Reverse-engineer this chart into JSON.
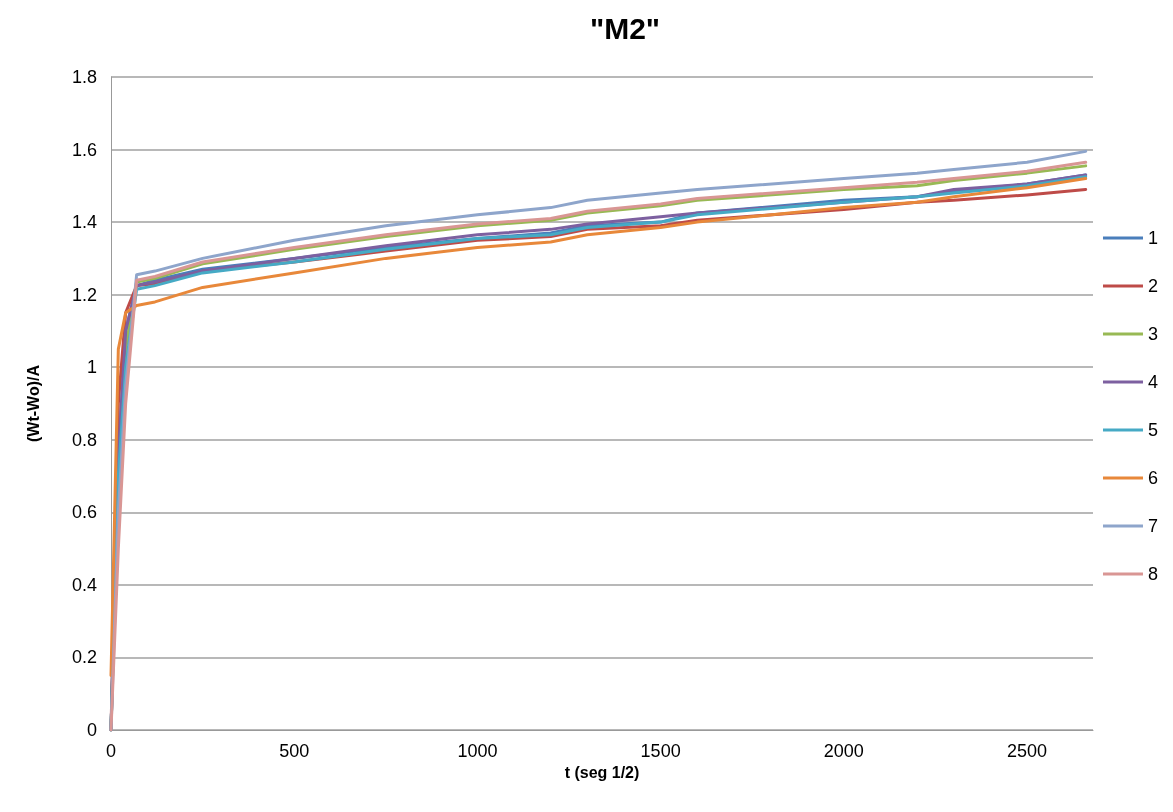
{
  "chart_data": {
    "type": "line",
    "title": "\"M2\"",
    "xlabel": "t (seg 1/2)",
    "ylabel": "(Wt-Wo)/A",
    "x": [
      0,
      20,
      40,
      70,
      120,
      250,
      500,
      750,
      1000,
      1200,
      1300,
      1500,
      1600,
      2000,
      2200,
      2300,
      2500,
      2660
    ],
    "series": [
      {
        "name": "1",
        "color": "#4a7ebb",
        "values": [
          0,
          0.75,
          1.1,
          1.225,
          1.24,
          1.27,
          1.3,
          1.33,
          1.355,
          1.37,
          1.39,
          1.4,
          1.425,
          1.46,
          1.47,
          1.485,
          1.505,
          1.53
        ]
      },
      {
        "name": "2",
        "color": "#be4b48",
        "values": [
          0,
          0.9,
          1.15,
          1.225,
          1.23,
          1.265,
          1.29,
          1.32,
          1.35,
          1.36,
          1.38,
          1.39,
          1.405,
          1.435,
          1.455,
          1.46,
          1.475,
          1.49
        ]
      },
      {
        "name": "3",
        "color": "#98b954",
        "values": [
          0,
          0.7,
          1.05,
          1.235,
          1.245,
          1.285,
          1.325,
          1.36,
          1.39,
          1.405,
          1.425,
          1.445,
          1.46,
          1.49,
          1.5,
          1.515,
          1.535,
          1.555
        ]
      },
      {
        "name": "4",
        "color": "#7d60a0",
        "values": [
          0,
          0.75,
          1.1,
          1.225,
          1.235,
          1.265,
          1.3,
          1.335,
          1.365,
          1.38,
          1.395,
          1.415,
          1.425,
          1.455,
          1.47,
          1.49,
          1.505,
          1.53
        ]
      },
      {
        "name": "5",
        "color": "#46aac5",
        "values": [
          0,
          0.7,
          1.0,
          1.215,
          1.225,
          1.26,
          1.29,
          1.325,
          1.355,
          1.365,
          1.385,
          1.4,
          1.42,
          1.455,
          1.47,
          1.48,
          1.5,
          1.525
        ]
      },
      {
        "name": "6",
        "color": "#e8883a",
        "values": [
          0.15,
          1.05,
          1.15,
          1.17,
          1.18,
          1.22,
          1.26,
          1.3,
          1.33,
          1.345,
          1.365,
          1.385,
          1.4,
          1.44,
          1.455,
          1.47,
          1.495,
          1.52
        ]
      },
      {
        "name": "7",
        "color": "#8ea5cb",
        "values": [
          0,
          0.6,
          0.95,
          1.255,
          1.265,
          1.3,
          1.35,
          1.39,
          1.42,
          1.44,
          1.46,
          1.48,
          1.49,
          1.52,
          1.535,
          1.545,
          1.565,
          1.595
        ]
      },
      {
        "name": "8",
        "color": "#d99694",
        "values": [
          0,
          0.5,
          0.9,
          1.24,
          1.25,
          1.29,
          1.33,
          1.365,
          1.395,
          1.41,
          1.43,
          1.45,
          1.465,
          1.495,
          1.51,
          1.52,
          1.54,
          1.565
        ]
      }
    ],
    "xlim": [
      0,
      2680
    ],
    "xticks": [
      0,
      500,
      1000,
      1500,
      2000,
      2500
    ],
    "ylim": [
      0,
      1.8
    ],
    "yticks": [
      0,
      0.2,
      0.4,
      0.6,
      0.8,
      1,
      1.2,
      1.4,
      1.6,
      1.8
    ],
    "grid": "y",
    "legend": "right",
    "marker": "none",
    "line_style": "solid"
  }
}
